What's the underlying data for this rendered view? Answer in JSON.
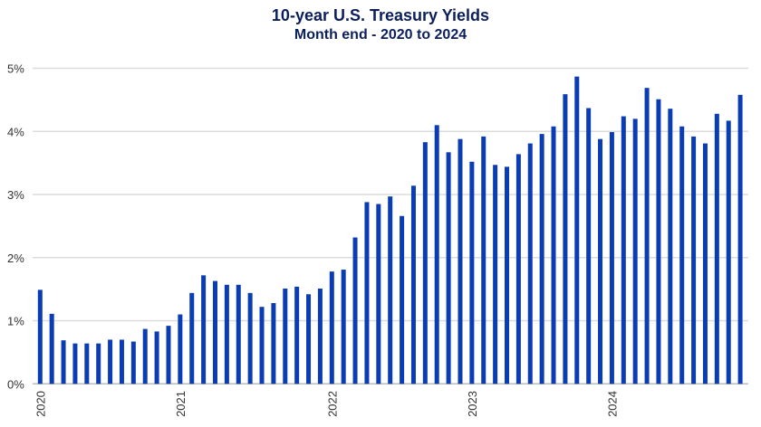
{
  "chart_data": {
    "type": "bar",
    "title": "10-year U.S. Treasury Yields",
    "subtitle": "Month end - 2020 to 2024",
    "xlabel": "",
    "ylabel": "",
    "ylim": [
      0,
      5
    ],
    "yticks": [
      "0%",
      "1%",
      "2%",
      "3%",
      "4%",
      "5%"
    ],
    "grid": true,
    "bar_color": "#0a3cb4",
    "x_tick_labels": [
      {
        "index": 0,
        "label": "2020"
      },
      {
        "index": 12,
        "label": "2021"
      },
      {
        "index": 25,
        "label": "2022"
      },
      {
        "index": 37,
        "label": "2023"
      },
      {
        "index": 49,
        "label": "2024"
      }
    ],
    "values": [
      1.49,
      1.11,
      0.69,
      0.64,
      0.64,
      0.64,
      0.7,
      0.7,
      0.67,
      0.87,
      0.83,
      0.92,
      1.1,
      1.44,
      1.72,
      1.63,
      1.57,
      1.57,
      1.44,
      1.22,
      1.28,
      1.51,
      1.54,
      1.42,
      1.51,
      1.78,
      1.81,
      2.32,
      2.88,
      2.85,
      2.97,
      2.66,
      3.14,
      3.83,
      4.1,
      3.67,
      3.88,
      3.52,
      3.92,
      3.47,
      3.44,
      3.64,
      3.81,
      3.96,
      4.08,
      4.59,
      4.87,
      4.37,
      3.88,
      3.99,
      4.24,
      4.2,
      4.69,
      4.51,
      4.36,
      4.08,
      3.92,
      3.81,
      4.28,
      4.17,
      4.58
    ]
  }
}
